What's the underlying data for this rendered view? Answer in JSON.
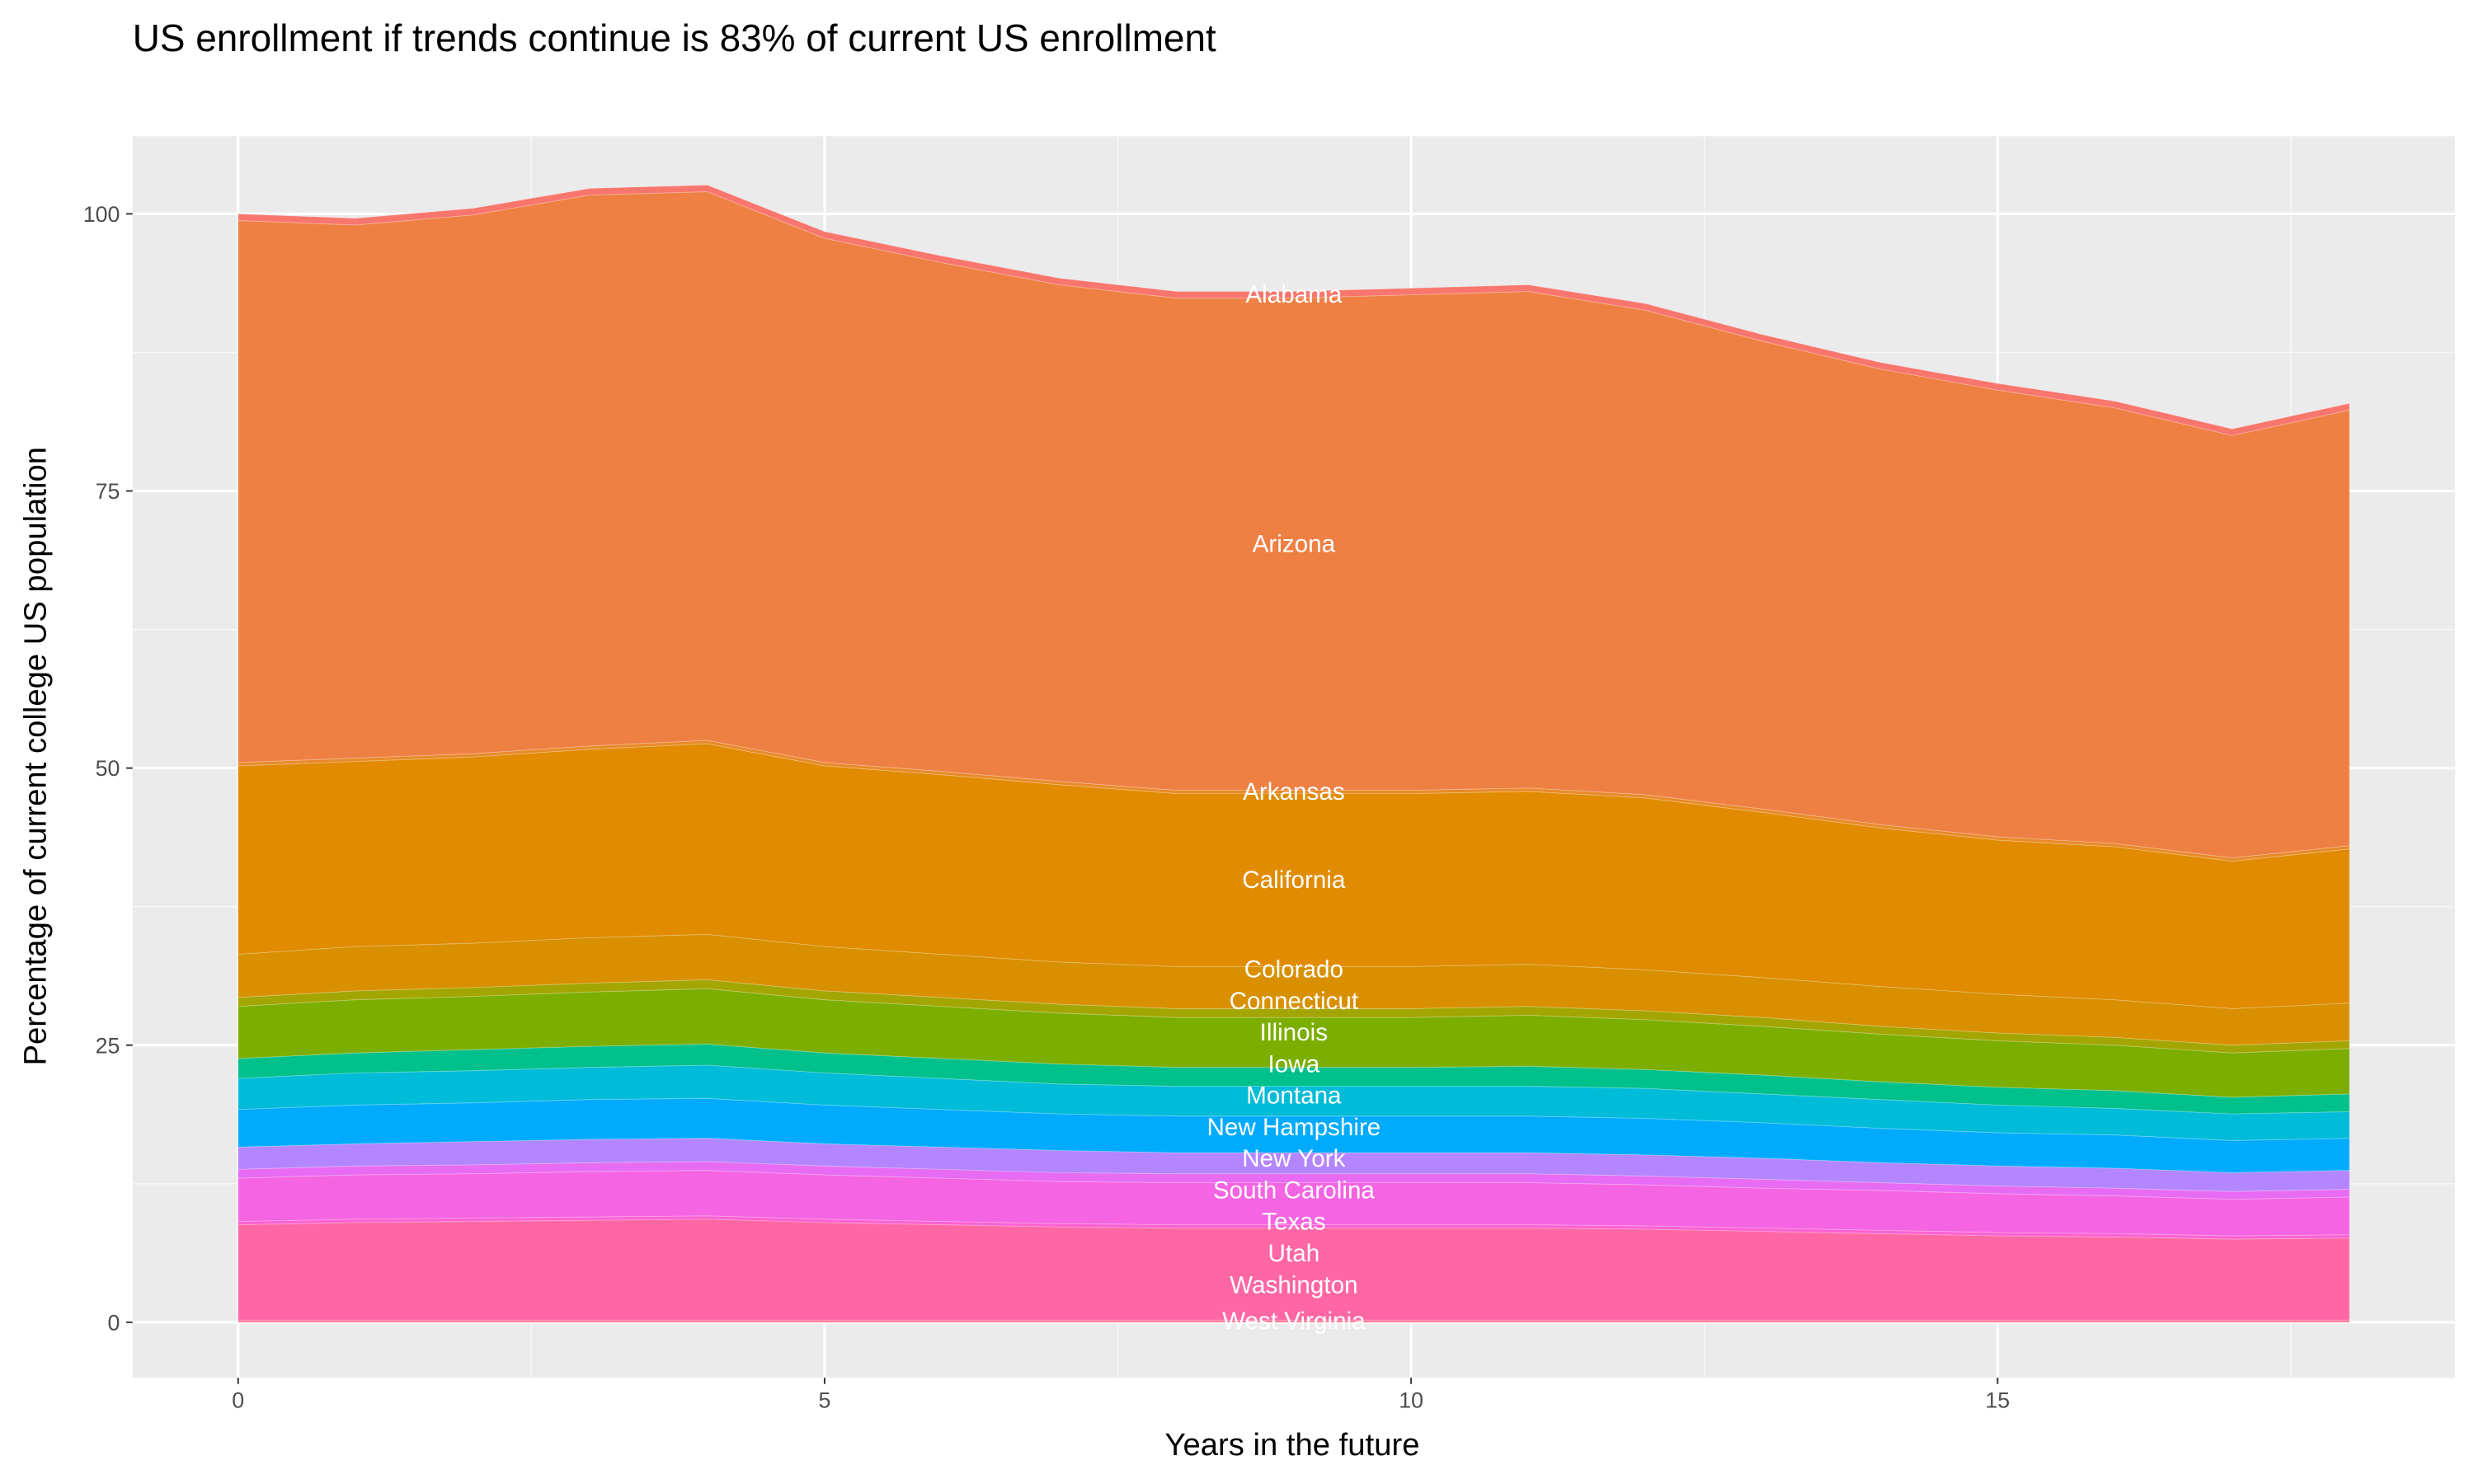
{
  "chart_data": {
    "type": "area",
    "stacked": true,
    "title": "US enrollment if trends continue is 83% of current US enrollment",
    "xlabel": "Years in the future",
    "ylabel": "Percentage of current college US population",
    "xlim": [
      -0.9,
      18.9
    ],
    "ylim": [
      -5,
      107
    ],
    "x_ticks": [
      0,
      5,
      10,
      15
    ],
    "y_ticks": [
      0,
      25,
      50,
      75,
      100
    ],
    "grid": true,
    "background": "#ebebeb",
    "label_x": 9,
    "x": [
      0,
      1,
      2,
      3,
      4,
      5,
      6,
      7,
      8,
      9,
      10,
      11,
      12,
      13,
      14,
      15,
      16,
      17,
      18
    ],
    "series": [
      {
        "name": "West Virginia",
        "color": "#ff6c91",
        "values": [
          0.2,
          0.2,
          0.2,
          0.2,
          0.2,
          0.2,
          0.2,
          0.2,
          0.2,
          0.2,
          0.2,
          0.2,
          0.2,
          0.2,
          0.2,
          0.2,
          0.2,
          0.2,
          0.2
        ]
      },
      {
        "name": "Washington",
        "color": "#ff67a4",
        "values": [
          8.6,
          8.8,
          8.9,
          9.0,
          9.1,
          8.8,
          8.6,
          8.4,
          8.3,
          8.3,
          8.3,
          8.3,
          8.2,
          8.0,
          7.8,
          7.6,
          7.5,
          7.3,
          7.4
        ]
      },
      {
        "name": "Utah",
        "color": "#fd61d1",
        "values": [
          0.3,
          0.3,
          0.3,
          0.3,
          0.3,
          0.3,
          0.3,
          0.3,
          0.3,
          0.3,
          0.3,
          0.3,
          0.3,
          0.3,
          0.3,
          0.3,
          0.3,
          0.3,
          0.3
        ]
      },
      {
        "name": "Texas",
        "color": "#f564e3",
        "values": [
          3.9,
          4.0,
          4.0,
          4.1,
          4.1,
          4.0,
          3.9,
          3.8,
          3.8,
          3.8,
          3.8,
          3.8,
          3.7,
          3.6,
          3.6,
          3.5,
          3.4,
          3.3,
          3.4
        ]
      },
      {
        "name": "South Carolina",
        "color": "#e76bf3",
        "values": [
          0.8,
          0.8,
          0.8,
          0.8,
          0.8,
          0.8,
          0.8,
          0.8,
          0.8,
          0.8,
          0.8,
          0.8,
          0.8,
          0.8,
          0.7,
          0.7,
          0.7,
          0.7,
          0.7
        ]
      },
      {
        "name": "New York",
        "color": "#b385ff",
        "values": [
          2.0,
          2.0,
          2.1,
          2.1,
          2.1,
          2.0,
          2.0,
          2.0,
          1.9,
          1.9,
          1.9,
          1.9,
          1.9,
          1.9,
          1.8,
          1.8,
          1.8,
          1.7,
          1.7
        ]
      },
      {
        "name": "New Hampshire",
        "color": "#00abfd",
        "values": [
          3.4,
          3.5,
          3.5,
          3.6,
          3.6,
          3.5,
          3.4,
          3.3,
          3.3,
          3.3,
          3.3,
          3.3,
          3.3,
          3.2,
          3.1,
          3.0,
          3.0,
          2.9,
          2.9
        ]
      },
      {
        "name": "Montana",
        "color": "#00bcd8",
        "values": [
          2.8,
          2.9,
          2.9,
          2.9,
          3.0,
          2.9,
          2.8,
          2.7,
          2.7,
          2.7,
          2.7,
          2.7,
          2.7,
          2.6,
          2.6,
          2.5,
          2.4,
          2.4,
          2.4
        ]
      },
      {
        "name": "Iowa",
        "color": "#00c08b",
        "values": [
          1.8,
          1.8,
          1.9,
          1.9,
          1.9,
          1.8,
          1.8,
          1.8,
          1.7,
          1.7,
          1.7,
          1.8,
          1.7,
          1.7,
          1.6,
          1.6,
          1.6,
          1.5,
          1.6
        ]
      },
      {
        "name": "Illinois",
        "color": "#7cae00",
        "values": [
          4.7,
          4.8,
          4.8,
          4.9,
          5.0,
          4.8,
          4.7,
          4.6,
          4.5,
          4.5,
          4.5,
          4.6,
          4.5,
          4.4,
          4.3,
          4.2,
          4.1,
          4.0,
          4.1
        ]
      },
      {
        "name": "Connecticut",
        "color": "#a3a500",
        "values": [
          0.8,
          0.8,
          0.8,
          0.8,
          0.8,
          0.8,
          0.8,
          0.8,
          0.8,
          0.8,
          0.8,
          0.8,
          0.8,
          0.8,
          0.7,
          0.7,
          0.7,
          0.7,
          0.7
        ]
      },
      {
        "name": "Colorado",
        "color": "#d89000",
        "values": [
          3.9,
          4.0,
          4.0,
          4.1,
          4.1,
          4.0,
          3.9,
          3.8,
          3.8,
          3.8,
          3.8,
          3.8,
          3.7,
          3.6,
          3.6,
          3.5,
          3.4,
          3.3,
          3.4
        ]
      },
      {
        "name": "California",
        "color": "#e08b00",
        "values": [
          17.0,
          16.7,
          16.8,
          17.0,
          17.2,
          16.3,
          16.2,
          16.0,
          15.6,
          15.6,
          15.6,
          15.6,
          15.5,
          14.9,
          14.3,
          13.9,
          13.8,
          13.3,
          13.9
        ]
      },
      {
        "name": "Arkansas",
        "color": "#e98a2a",
        "values": [
          0.3,
          0.3,
          0.3,
          0.3,
          0.3,
          0.3,
          0.3,
          0.3,
          0.3,
          0.3,
          0.3,
          0.3,
          0.3,
          0.3,
          0.3,
          0.3,
          0.3,
          0.3,
          0.3
        ]
      },
      {
        "name": "Arizona",
        "color": "#ee8044",
        "values": [
          48.9,
          48.1,
          48.6,
          49.7,
          49.5,
          47.3,
          45.9,
          44.8,
          44.4,
          44.4,
          44.7,
          44.8,
          43.7,
          42.2,
          41.1,
          40.3,
          39.3,
          38.1,
          39.3
        ]
      },
      {
        "name": "Alabama",
        "color": "#f8766d",
        "values": [
          0.6,
          0.6,
          0.6,
          0.6,
          0.6,
          0.6,
          0.6,
          0.6,
          0.6,
          0.6,
          0.6,
          0.6,
          0.6,
          0.6,
          0.6,
          0.6,
          0.6,
          0.6,
          0.6
        ]
      }
    ]
  }
}
